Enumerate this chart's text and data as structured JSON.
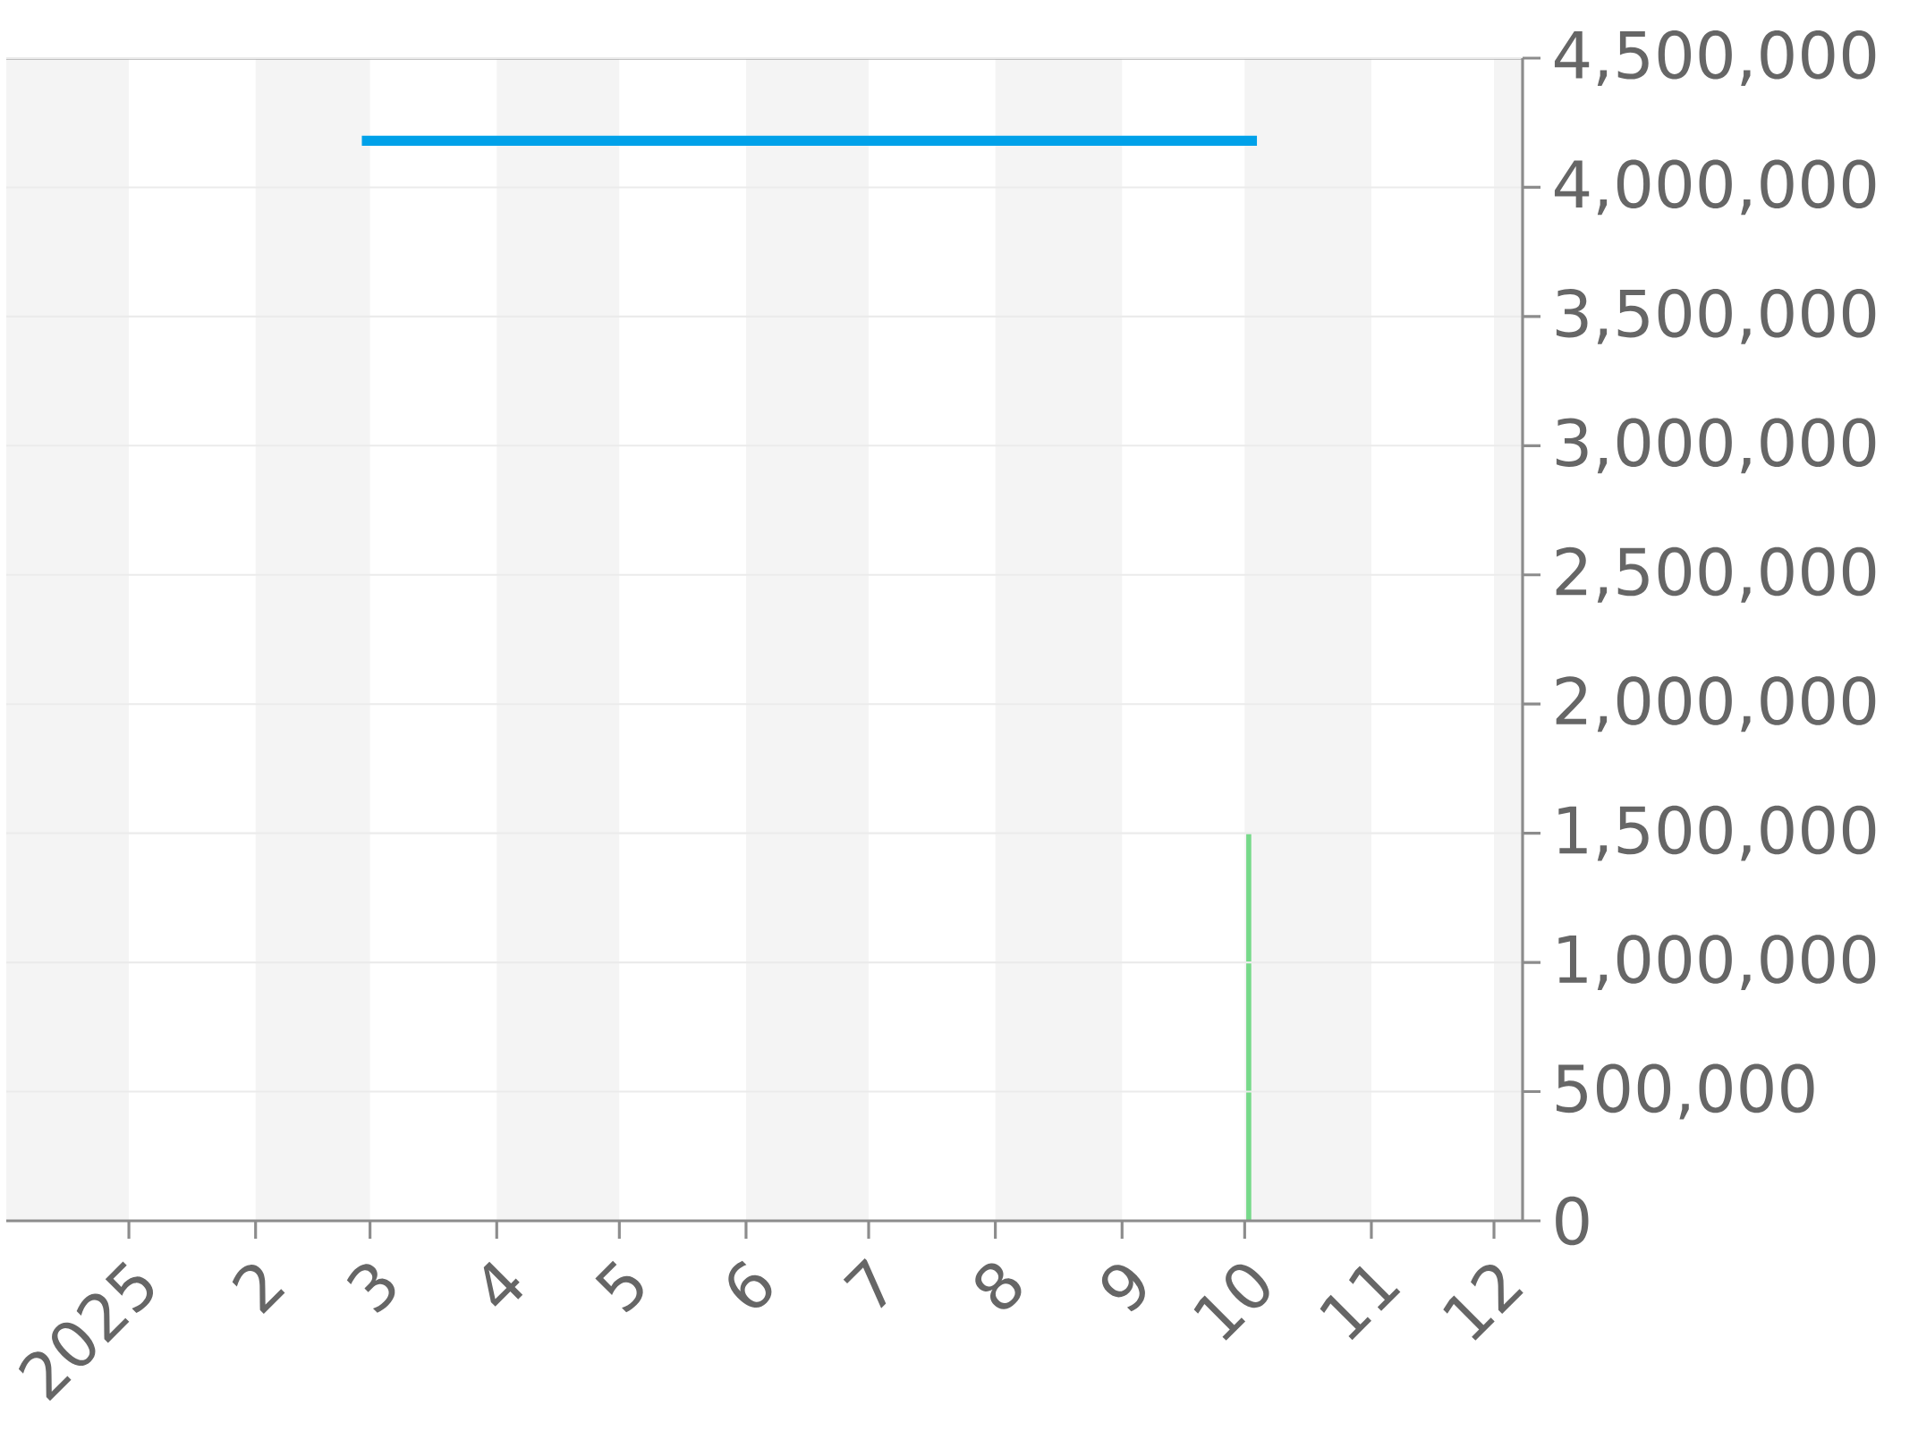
{
  "chart_data": {
    "type": "line",
    "series": [
      {
        "color": "#00a1e9",
        "x": [
          "2025-02-27",
          "2025-10-04"
        ],
        "values": [
          4180000,
          4180000
        ]
      },
      {
        "type": "bar",
        "color": "#77d98a",
        "x": [
          "2025-10-02"
        ],
        "values": [
          1500000
        ]
      }
    ],
    "xlim": [
      "2024-12-02",
      "2025-12-08"
    ],
    "xticks": [
      {
        "value": "2025-01-01",
        "label": "2025"
      },
      {
        "value": "2025-02-01",
        "label": "2"
      },
      {
        "value": "2025-03-01",
        "label": "3"
      },
      {
        "value": "2025-04-01",
        "label": "4"
      },
      {
        "value": "2025-05-01",
        "label": "5"
      },
      {
        "value": "2025-06-01",
        "label": "6"
      },
      {
        "value": "2025-07-01",
        "label": "7"
      },
      {
        "value": "2025-08-01",
        "label": "8"
      },
      {
        "value": "2025-09-01",
        "label": "9"
      },
      {
        "value": "2025-10-01",
        "label": "10"
      },
      {
        "value": "2025-11-01",
        "label": "11"
      },
      {
        "value": "2025-12-01",
        "label": "12"
      }
    ],
    "ylim": [
      0,
      4500000
    ],
    "yticks": [
      0,
      {
        "value": 500000,
        "label": "500,000"
      },
      {
        "value": 1000000,
        "label": "1,000,000"
      },
      {
        "value": 1500000,
        "label": "1,500,000"
      },
      {
        "value": 2000000,
        "label": "2,000,000"
      },
      {
        "value": 2500000,
        "label": "2,500,000"
      },
      {
        "value": 3000000,
        "label": "3,000,000"
      },
      {
        "value": 3500000,
        "label": "3,500,000"
      },
      {
        "value": 4000000,
        "label": "4,000,000"
      },
      {
        "value": 4500000,
        "label": "4,500,000"
      }
    ],
    "grid": "y",
    "bands": [
      {
        "axis": "x",
        "from": "2024-12-02",
        "to": "2025-01-01",
        "color": "#f4f4f4"
      },
      {
        "axis": "x",
        "from": "2025-02-01",
        "to": "2025-03-01",
        "color": "#f4f4f4"
      },
      {
        "axis": "x",
        "from": "2025-04-01",
        "to": "2025-05-01",
        "color": "#f4f4f4"
      },
      {
        "axis": "x",
        "from": "2025-06-01",
        "to": "2025-07-01",
        "color": "#f4f4f4"
      },
      {
        "axis": "x",
        "from": "2025-08-01",
        "to": "2025-09-01",
        "color": "#f4f4f4"
      },
      {
        "axis": "x",
        "from": "2025-10-01",
        "to": "2025-11-01",
        "color": "#f4f4f4"
      },
      {
        "axis": "x",
        "from": "2025-12-01",
        "to": "2025-12-08",
        "color": "#f4f4f4"
      }
    ]
  }
}
